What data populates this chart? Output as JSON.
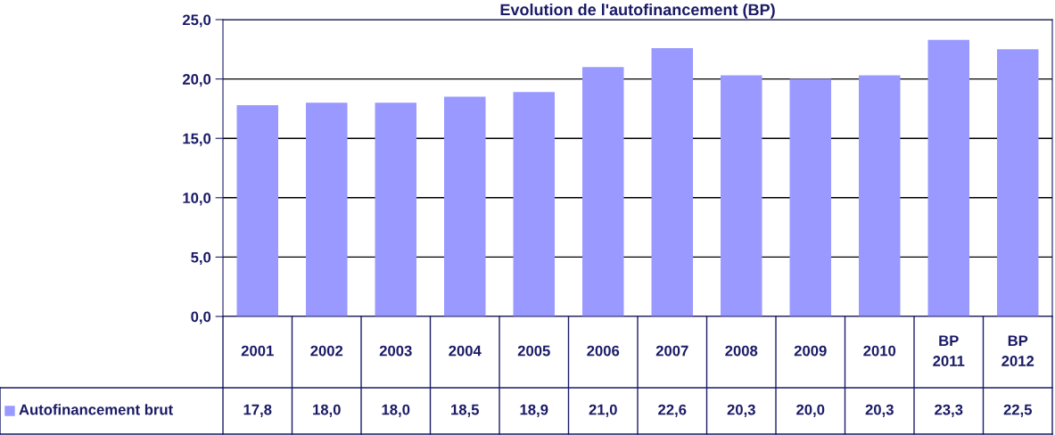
{
  "chart_data": {
    "type": "bar",
    "title": "Evolution de l'autofinancement (BP)",
    "categories": [
      "2001",
      "2002",
      "2003",
      "2004",
      "2005",
      "2006",
      "2007",
      "2008",
      "2009",
      "2010",
      "BP 2011",
      "BP 2012"
    ],
    "series": [
      {
        "name": "Autofinancement brut",
        "color": "#9999ff",
        "values": [
          17.8,
          18.0,
          18.0,
          18.5,
          18.9,
          21.0,
          22.6,
          20.3,
          20.0,
          20.3,
          23.3,
          22.5
        ],
        "value_labels": [
          "17,8",
          "18,0",
          "18,0",
          "18,5",
          "18,9",
          "21,0",
          "22,6",
          "20,3",
          "20,0",
          "20,3",
          "23,3",
          "22,5"
        ]
      }
    ],
    "ylim": [
      0,
      25
    ],
    "yticks": [
      {
        "value": 0,
        "label": "0,0"
      },
      {
        "value": 5,
        "label": "5,0"
      },
      {
        "value": 10,
        "label": "10,0"
      },
      {
        "value": 15,
        "label": "15,0"
      },
      {
        "value": 20,
        "label": "20,0"
      },
      {
        "value": 25,
        "label": "25,0"
      }
    ],
    "grid": "y"
  }
}
